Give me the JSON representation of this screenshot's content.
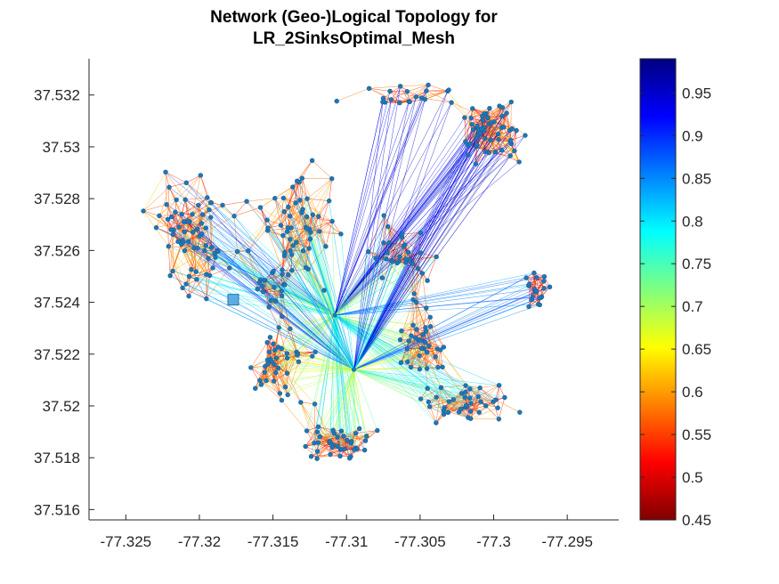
{
  "chart_data": {
    "type": "scatter",
    "title": "Network (Geo-)Logical Topology for",
    "subtitle": "LR_2SinksOptimal_Mesh",
    "xlabel": "",
    "ylabel": "",
    "xlim": [
      -77.3275,
      -77.2915
    ],
    "ylim": [
      37.5156,
      37.5334
    ],
    "xticks": [
      -77.325,
      -77.32,
      -77.315,
      -77.31,
      -77.305,
      -77.3,
      -77.295
    ],
    "xtick_labels": [
      "-77.325",
      "-77.32",
      "-77.315",
      "-77.31",
      "-77.305",
      "-77.3",
      "-77.295"
    ],
    "yticks": [
      37.516,
      37.518,
      37.52,
      37.522,
      37.524,
      37.526,
      37.528,
      37.53,
      37.532
    ],
    "ytick_labels": [
      "37.516",
      "37.518",
      "37.52",
      "37.522",
      "37.524",
      "37.526",
      "37.528",
      "37.53",
      "37.532"
    ],
    "grid": false,
    "colorbar": {
      "colormap": "jet",
      "clim": [
        0.45,
        0.99
      ],
      "ticks": [
        0.45,
        0.5,
        0.55,
        0.6,
        0.65,
        0.7,
        0.75,
        0.8,
        0.85,
        0.9,
        0.95
      ],
      "tick_labels": [
        "0.45",
        "0.5",
        "0.55",
        "0.6",
        "0.65",
        "0.7",
        "0.75",
        "0.8",
        "0.85",
        "0.9",
        "0.95"
      ]
    },
    "sinks": [
      {
        "x": -77.3108,
        "y": 37.5235
      },
      {
        "x": -77.3095,
        "y": 37.5214
      }
    ],
    "highlight_node": {
      "x": -77.3177,
      "y": 37.5241
    },
    "node_clusters": [
      {
        "x": -77.3205,
        "y": 37.5265,
        "sx": 0.0025,
        "sy": 0.0022,
        "n": 70
      },
      {
        "x": -77.3135,
        "y": 37.527,
        "sx": 0.003,
        "sy": 0.002,
        "n": 55
      },
      {
        "x": -77.3,
        "y": 37.5305,
        "sx": 0.0022,
        "sy": 0.001,
        "n": 55
      },
      {
        "x": -77.306,
        "y": 37.5258,
        "sx": 0.002,
        "sy": 0.0012,
        "n": 30
      },
      {
        "x": -77.305,
        "y": 37.5225,
        "sx": 0.0018,
        "sy": 0.0014,
        "n": 35
      },
      {
        "x": -77.3145,
        "y": 37.5215,
        "sx": 0.0022,
        "sy": 0.0014,
        "n": 40
      },
      {
        "x": -77.311,
        "y": 37.5185,
        "sx": 0.0025,
        "sy": 0.0007,
        "n": 40
      },
      {
        "x": -77.302,
        "y": 37.52,
        "sx": 0.003,
        "sy": 0.001,
        "n": 40
      },
      {
        "x": -77.297,
        "y": 37.5245,
        "sx": 0.001,
        "sy": 0.0007,
        "n": 20
      },
      {
        "x": -77.306,
        "y": 37.532,
        "sx": 0.004,
        "sy": 0.0004,
        "n": 20
      },
      {
        "x": -77.315,
        "y": 37.5245,
        "sx": 0.0015,
        "sy": 0.001,
        "n": 20
      }
    ]
  }
}
